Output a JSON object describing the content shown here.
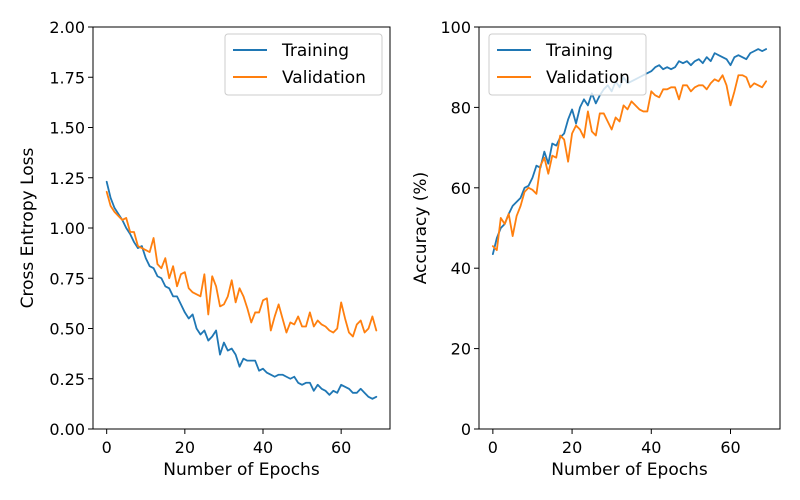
{
  "chart_data": [
    {
      "type": "line",
      "xlabel": "Number of Epochs",
      "ylabel": "Cross Entropy Loss",
      "xlim": [
        -3.5,
        72.5
      ],
      "ylim": [
        0,
        2.0
      ],
      "xticks": [
        0,
        20,
        40,
        60
      ],
      "yticks": [
        0.0,
        0.25,
        0.5,
        0.75,
        1.0,
        1.25,
        1.5,
        1.75,
        2.0
      ],
      "ytick_labels": [
        "0.00",
        "0.25",
        "0.50",
        "0.75",
        "1.00",
        "1.25",
        "1.50",
        "1.75",
        "2.00"
      ],
      "legend_placement": "top-right",
      "grid": false,
      "x": [
        0,
        1,
        2,
        3,
        4,
        5,
        6,
        7,
        8,
        9,
        10,
        11,
        12,
        13,
        14,
        15,
        16,
        17,
        18,
        19,
        20,
        21,
        22,
        23,
        24,
        25,
        26,
        27,
        28,
        29,
        30,
        31,
        32,
        33,
        34,
        35,
        36,
        37,
        38,
        39,
        40,
        41,
        42,
        43,
        44,
        45,
        46,
        47,
        48,
        49,
        50,
        51,
        52,
        53,
        54,
        55,
        56,
        57,
        58,
        59,
        60,
        61,
        62,
        63,
        64,
        65,
        66,
        67,
        68,
        69
      ],
      "series": [
        {
          "name": "Training",
          "color": "#1f77b4",
          "values": [
            1.23,
            1.15,
            1.1,
            1.07,
            1.04,
            1.0,
            0.97,
            0.93,
            0.9,
            0.91,
            0.85,
            0.81,
            0.8,
            0.76,
            0.75,
            0.71,
            0.7,
            0.66,
            0.66,
            0.62,
            0.58,
            0.55,
            0.57,
            0.5,
            0.47,
            0.49,
            0.44,
            0.46,
            0.49,
            0.37,
            0.43,
            0.39,
            0.4,
            0.37,
            0.31,
            0.35,
            0.34,
            0.34,
            0.34,
            0.29,
            0.3,
            0.28,
            0.27,
            0.26,
            0.27,
            0.27,
            0.26,
            0.25,
            0.26,
            0.23,
            0.22,
            0.23,
            0.23,
            0.19,
            0.22,
            0.2,
            0.19,
            0.17,
            0.19,
            0.18,
            0.22,
            0.21,
            0.2,
            0.18,
            0.18,
            0.2,
            0.18,
            0.16,
            0.15,
            0.16
          ]
        },
        {
          "name": "Validation",
          "color": "#ff7f0e",
          "values": [
            1.18,
            1.11,
            1.08,
            1.06,
            1.04,
            1.05,
            0.98,
            0.98,
            0.91,
            0.9,
            0.89,
            0.88,
            0.95,
            0.82,
            0.8,
            0.85,
            0.75,
            0.81,
            0.71,
            0.77,
            0.78,
            0.7,
            0.68,
            0.67,
            0.66,
            0.77,
            0.57,
            0.76,
            0.71,
            0.61,
            0.62,
            0.66,
            0.74,
            0.63,
            0.7,
            0.66,
            0.6,
            0.53,
            0.58,
            0.58,
            0.64,
            0.65,
            0.49,
            0.56,
            0.62,
            0.55,
            0.48,
            0.53,
            0.52,
            0.56,
            0.51,
            0.51,
            0.58,
            0.51,
            0.54,
            0.52,
            0.51,
            0.49,
            0.48,
            0.5,
            0.63,
            0.55,
            0.48,
            0.46,
            0.52,
            0.54,
            0.48,
            0.5,
            0.56,
            0.49
          ]
        }
      ]
    },
    {
      "type": "line",
      "xlabel": "Number of Epochs",
      "ylabel": "Accuracy (%)",
      "xlim": [
        -3.5,
        72.5
      ],
      "ylim": [
        0,
        100
      ],
      "xticks": [
        0,
        20,
        40,
        60
      ],
      "yticks": [
        0,
        20,
        40,
        60,
        80,
        100
      ],
      "ytick_labels": [
        "0",
        "20",
        "40",
        "60",
        "80",
        "100"
      ],
      "legend_placement": "top-left",
      "grid": false,
      "x": [
        0,
        1,
        2,
        3,
        4,
        5,
        6,
        7,
        8,
        9,
        10,
        11,
        12,
        13,
        14,
        15,
        16,
        17,
        18,
        19,
        20,
        21,
        22,
        23,
        24,
        25,
        26,
        27,
        28,
        29,
        30,
        31,
        32,
        33,
        34,
        35,
        36,
        37,
        38,
        39,
        40,
        41,
        42,
        43,
        44,
        45,
        46,
        47,
        48,
        49,
        50,
        51,
        52,
        53,
        54,
        55,
        56,
        57,
        58,
        59,
        60,
        61,
        62,
        63,
        64,
        65,
        66,
        67,
        68,
        69
      ],
      "series": [
        {
          "name": "Training",
          "color": "#1f77b4",
          "values": [
            43.5,
            47.5,
            50.0,
            51.0,
            53.5,
            55.5,
            56.5,
            57.5,
            60.0,
            60.5,
            62.5,
            65.5,
            65.0,
            69.0,
            66.0,
            71.0,
            70.5,
            72.5,
            73.5,
            77.0,
            79.5,
            76.0,
            80.0,
            82.0,
            80.5,
            83.5,
            81.0,
            83.0,
            84.5,
            85.5,
            84.0,
            86.5,
            85.0,
            87.5,
            86.0,
            86.5,
            87.0,
            87.5,
            88.0,
            88.5,
            89.0,
            90.0,
            90.5,
            89.5,
            90.0,
            89.5,
            90.0,
            91.5,
            91.0,
            91.5,
            90.5,
            91.5,
            92.0,
            91.0,
            92.5,
            91.5,
            93.5,
            93.0,
            92.5,
            92.0,
            90.5,
            92.5,
            93.0,
            92.5,
            92.0,
            93.5,
            94.0,
            94.5,
            94.0,
            94.5
          ]
        },
        {
          "name": "Validation",
          "color": "#ff7f0e",
          "values": [
            45.5,
            44.5,
            52.5,
            51.0,
            53.5,
            48.0,
            53.0,
            55.5,
            59.0,
            60.0,
            59.5,
            58.5,
            65.5,
            67.5,
            63.5,
            68.0,
            67.5,
            73.0,
            72.0,
            66.5,
            73.5,
            75.5,
            74.5,
            72.5,
            79.0,
            74.0,
            73.0,
            78.5,
            78.5,
            76.5,
            74.5,
            77.5,
            76.5,
            80.5,
            79.5,
            81.5,
            80.5,
            79.5,
            79.0,
            79.0,
            84.0,
            83.0,
            82.5,
            84.5,
            84.5,
            85.0,
            85.0,
            82.0,
            85.5,
            85.5,
            84.0,
            85.0,
            85.5,
            85.5,
            84.5,
            86.0,
            87.0,
            86.5,
            88.0,
            85.5,
            80.5,
            84.0,
            88.0,
            88.0,
            87.5,
            85.0,
            86.0,
            85.5,
            85.0,
            86.5
          ]
        }
      ]
    }
  ]
}
